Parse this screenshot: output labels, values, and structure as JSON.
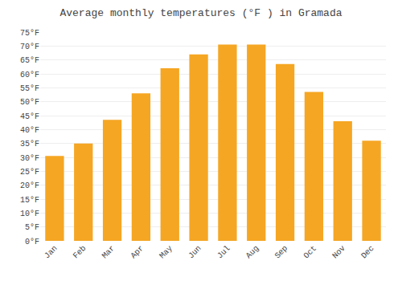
{
  "chart_data": {
    "type": "bar",
    "title": "Average monthly temperatures (°F ) in Gramada",
    "categories": [
      "Jan",
      "Feb",
      "Mar",
      "Apr",
      "May",
      "Jun",
      "Jul",
      "Aug",
      "Sep",
      "Oct",
      "Nov",
      "Dec"
    ],
    "values": [
      30.5,
      35.0,
      43.5,
      53.0,
      62.0,
      67.0,
      70.5,
      70.5,
      63.5,
      53.5,
      43.0,
      36.0
    ],
    "color": "#F5A623",
    "ylim": [
      0,
      75
    ],
    "yticks": [
      {
        "value": 0,
        "label": "0°F"
      },
      {
        "value": 5,
        "label": "5°F"
      },
      {
        "value": 10,
        "label": "10°F"
      },
      {
        "value": 15,
        "label": "15°F"
      },
      {
        "value": 20,
        "label": "20°F"
      },
      {
        "value": 25,
        "label": "25°F"
      },
      {
        "value": 30,
        "label": "30°F"
      },
      {
        "value": 35,
        "label": "35°F"
      },
      {
        "value": 40,
        "label": "40°F"
      },
      {
        "value": 45,
        "label": "45°F"
      },
      {
        "value": 50,
        "label": "50°F"
      },
      {
        "value": 55,
        "label": "55°F"
      },
      {
        "value": 60,
        "label": "60°F"
      },
      {
        "value": 65,
        "label": "65°F"
      },
      {
        "value": 70,
        "label": "70°F"
      },
      {
        "value": 75,
        "label": "75°F"
      }
    ],
    "grid": true
  }
}
